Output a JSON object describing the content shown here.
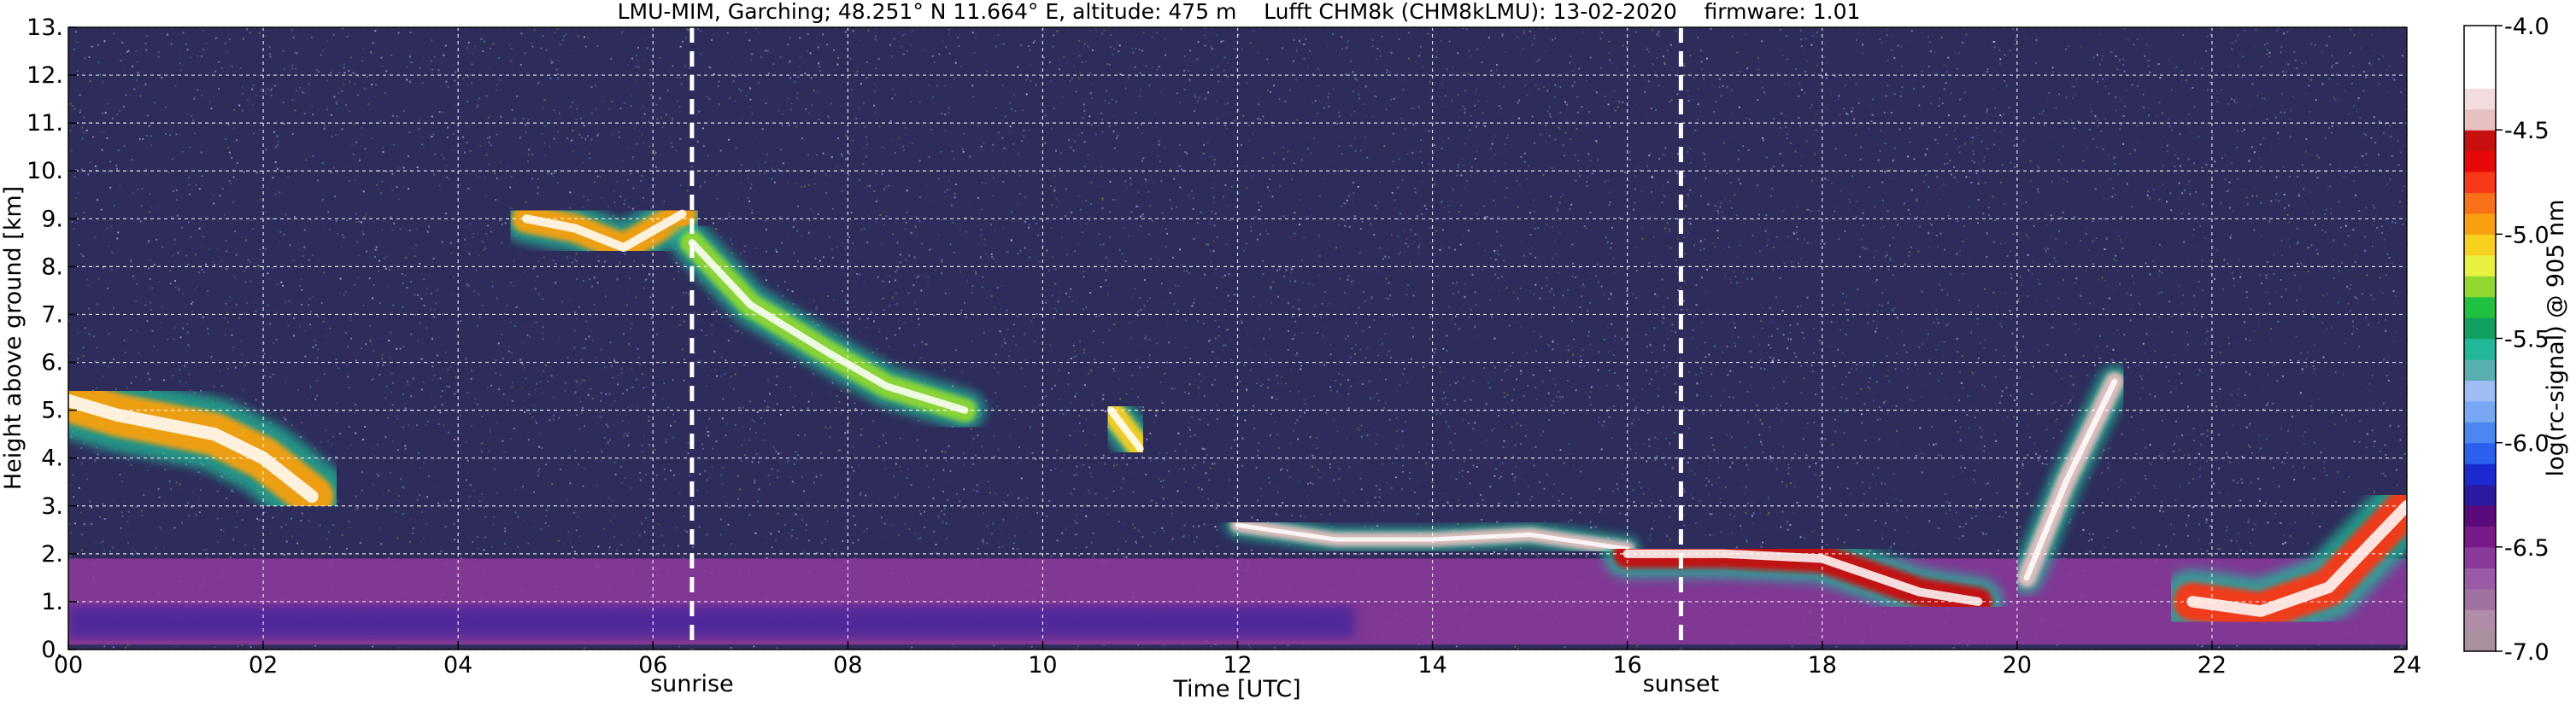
{
  "chart_data": {
    "type": "heatmap",
    "title": "LMU-MIM, Garching; 48.251° N 11.664° E, altitude: 475 m    Lufft CHM8k (CHM8kLMU): 13-02-2020    firmware: 1.01",
    "xlabel": "Time [UTC]",
    "ylabel": "Height above ground [km]",
    "xlim": [
      0,
      24
    ],
    "ylim": [
      0,
      13
    ],
    "x_ticks": [
      0,
      2,
      4,
      6,
      8,
      10,
      12,
      14,
      16,
      18,
      20,
      22,
      24
    ],
    "x_tick_labels": [
      "00",
      "02",
      "04",
      "06",
      "08",
      "10",
      "12",
      "14",
      "16",
      "18",
      "20",
      "22",
      "24"
    ],
    "y_ticks": [
      0,
      1,
      2,
      3,
      4,
      5,
      6,
      7,
      8,
      9,
      10,
      11,
      12,
      13
    ],
    "y_tick_labels": [
      "0.",
      "1.",
      "2.",
      "3.",
      "4.",
      "5.",
      "6.",
      "7.",
      "8.",
      "9.",
      "10.",
      "11.",
      "12.",
      "13."
    ],
    "grid": true,
    "markers": [
      {
        "label": "sunrise",
        "x": 6.4
      },
      {
        "label": "sunset",
        "x": 16.55
      }
    ],
    "colorbar": {
      "label": "log(rc-signal) @ 905 nm",
      "min": -7.0,
      "max": -4.0,
      "ticks": [
        -7.0,
        -6.5,
        -6.0,
        -5.5,
        -5.0,
        -4.5,
        -4.0
      ],
      "tick_labels": [
        "-7.0",
        "-6.5",
        "-6.0",
        "-5.5",
        "-5.0",
        "-4.5",
        "-4.0"
      ],
      "colors": [
        "#a8909e",
        "#b08ca8",
        "#a070a0",
        "#9a5aa6",
        "#8a3a9a",
        "#7a1a8a",
        "#5a0a7a",
        "#2a1aa0",
        "#1a2ad0",
        "#2a60f0",
        "#4a88f0",
        "#78a8f4",
        "#a0bcf4",
        "#58b0b0",
        "#20b898",
        "#10a060",
        "#20c040",
        "#90d830",
        "#e8f040",
        "#f8d020",
        "#f8a010",
        "#f87018",
        "#f83818",
        "#e80808",
        "#c81010",
        "#e8c0c0",
        "#f2dcdc",
        "#ffffff",
        "#ffffff",
        "#ffffff"
      ]
    },
    "background": "#2e2c5a",
    "features": [
      {
        "type": "band",
        "name": "surface aerosol layer",
        "x": [
          0,
          24
        ],
        "y": [
          0.1,
          1.9
        ],
        "value": -6.6
      },
      {
        "type": "layer",
        "name": "cloud 00-02.5",
        "points": [
          [
            0,
            5.2
          ],
          [
            0.5,
            4.9
          ],
          [
            1,
            4.7
          ],
          [
            1.5,
            4.5
          ],
          [
            2,
            4.0
          ],
          [
            2.5,
            3.2
          ]
        ],
        "thickness": 0.9,
        "value": -4.9
      },
      {
        "type": "layer",
        "name": "cloud 04.7-07",
        "points": [
          [
            4.7,
            9.0
          ],
          [
            5.2,
            8.8
          ],
          [
            5.7,
            8.4
          ],
          [
            6.3,
            9.1
          ]
        ],
        "thickness": 0.6,
        "value": -5.0
      },
      {
        "type": "layer",
        "name": "cirrus 06-09",
        "points": [
          [
            6.4,
            8.5
          ],
          [
            7.0,
            7.2
          ],
          [
            7.8,
            6.2
          ],
          [
            8.4,
            5.5
          ],
          [
            9.2,
            5.0
          ]
        ],
        "thickness": 0.5,
        "value": -5.3
      },
      {
        "type": "layer",
        "name": "cloud 10.7-11",
        "points": [
          [
            10.7,
            5.0
          ],
          [
            11.0,
            4.2
          ]
        ],
        "thickness": 0.5,
        "value": -5.1
      },
      {
        "type": "layer",
        "name": "boundary layer top 12-16",
        "points": [
          [
            12,
            2.6
          ],
          [
            13,
            2.3
          ],
          [
            14,
            2.3
          ],
          [
            15,
            2.4
          ],
          [
            16,
            2.1
          ]
        ],
        "thickness": 0.3,
        "value": -4.5
      },
      {
        "type": "layer",
        "name": "boundary layer top 16-20",
        "points": [
          [
            16,
            2.0
          ],
          [
            17,
            2.0
          ],
          [
            18,
            1.9
          ],
          [
            19,
            1.2
          ],
          [
            19.6,
            1.0
          ]
        ],
        "thickness": 0.6,
        "value": -4.6
      },
      {
        "type": "layer",
        "name": "rising plume 20-21",
        "points": [
          [
            20.1,
            1.5
          ],
          [
            20.5,
            3.5
          ],
          [
            21.0,
            5.6
          ]
        ],
        "thickness": 0.4,
        "value": -4.5
      },
      {
        "type": "layer",
        "name": "evening layer 21.8-24",
        "points": [
          [
            21.8,
            1.0
          ],
          [
            22.5,
            0.8
          ],
          [
            23.2,
            1.3
          ],
          [
            24,
            3.0
          ]
        ],
        "thickness": 0.8,
        "value": -4.8
      }
    ]
  }
}
